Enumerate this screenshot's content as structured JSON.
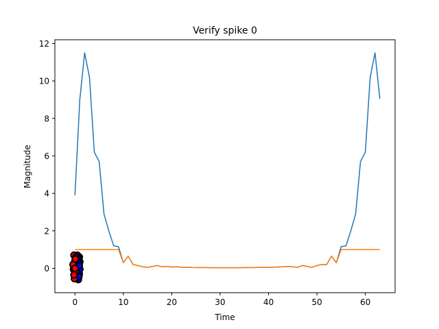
{
  "chart_data": {
    "type": "line",
    "title": "Verify spike 0",
    "xlabel": "Time",
    "ylabel": "Magnitude",
    "xlim": [
      -4.15,
      66.15
    ],
    "ylim": [
      -1.3,
      12.2
    ],
    "xticks": [
      0,
      10,
      20,
      30,
      40,
      50,
      60
    ],
    "yticks": [
      0,
      2,
      4,
      6,
      8,
      10,
      12
    ],
    "series": [
      {
        "color": "#1f77b4",
        "x": [
          0,
          1,
          2,
          3,
          4,
          5,
          6,
          7,
          8,
          9,
          10,
          11,
          12,
          13,
          14,
          15,
          16,
          17,
          18,
          19,
          20,
          21,
          22,
          23,
          24,
          25,
          26,
          27,
          28,
          29,
          30,
          31,
          32,
          33,
          34,
          35,
          36,
          37,
          38,
          39,
          40,
          41,
          42,
          43,
          44,
          45,
          46,
          47,
          48,
          49,
          50,
          51,
          52,
          53,
          54,
          55,
          56,
          57,
          58,
          59,
          60,
          61,
          62,
          63
        ],
        "y": [
          3.9,
          9.0,
          11.5,
          10.2,
          6.2,
          5.7,
          2.9,
          2.0,
          1.2,
          1.15,
          0.3,
          0.65,
          0.2,
          0.15,
          0.08,
          0.05,
          0.1,
          0.15,
          0.08,
          0.1,
          0.07,
          0.08,
          0.06,
          0.05,
          0.05,
          0.04,
          0.04,
          0.04,
          0.03,
          0.03,
          0.03,
          0.03,
          0.03,
          0.03,
          0.03,
          0.04,
          0.04,
          0.04,
          0.05,
          0.05,
          0.05,
          0.06,
          0.07,
          0.08,
          0.1,
          0.08,
          0.05,
          0.15,
          0.1,
          0.05,
          0.15,
          0.2,
          0.2,
          0.65,
          0.3,
          1.15,
          1.2,
          2.0,
          2.9,
          5.7,
          6.2,
          10.2,
          11.5,
          9.05
        ]
      },
      {
        "color": "#ff7f0e",
        "x": [
          0,
          1,
          2,
          3,
          4,
          5,
          6,
          7,
          8,
          9,
          10,
          11,
          12,
          13,
          14,
          15,
          16,
          17,
          18,
          19,
          20,
          21,
          22,
          23,
          24,
          25,
          26,
          27,
          28,
          29,
          30,
          31,
          32,
          33,
          34,
          35,
          36,
          37,
          38,
          39,
          40,
          41,
          42,
          43,
          44,
          45,
          46,
          47,
          48,
          49,
          50,
          51,
          52,
          53,
          54,
          55,
          56,
          57,
          58,
          59,
          60,
          61,
          62,
          63
        ],
        "y": [
          1,
          1,
          1,
          1,
          1,
          1,
          1,
          1,
          1,
          1,
          0.3,
          0.65,
          0.2,
          0.15,
          0.08,
          0.05,
          0.1,
          0.15,
          0.08,
          0.1,
          0.07,
          0.08,
          0.06,
          0.05,
          0.05,
          0.04,
          0.04,
          0.04,
          0.03,
          0.03,
          0.03,
          0.03,
          0.03,
          0.03,
          0.03,
          0.04,
          0.04,
          0.04,
          0.05,
          0.05,
          0.05,
          0.06,
          0.07,
          0.08,
          0.1,
          0.08,
          0.05,
          0.15,
          0.1,
          0.05,
          0.15,
          0.2,
          0.2,
          0.65,
          0.3,
          1,
          1,
          1,
          1,
          1,
          1,
          1,
          1,
          1
        ]
      }
    ],
    "scatter_series": [
      {
        "color": "#0000ff",
        "edge": "#000000",
        "points": [
          [
            0.4,
            0.5
          ],
          [
            0.6,
            0.2
          ],
          [
            0.8,
            -0.1
          ],
          [
            0.5,
            -0.4
          ],
          [
            0.7,
            -0.6
          ],
          [
            0.9,
            0.6
          ],
          [
            0.3,
            0.1
          ],
          [
            1.0,
            0.35
          ],
          [
            0.6,
            -0.25
          ],
          [
            0.8,
            0.05
          ],
          [
            0.4,
            -0.5
          ],
          [
            0.9,
            -0.3
          ],
          [
            0.5,
            0.7
          ],
          [
            0.7,
            0.45
          ],
          [
            1.0,
            -0.05
          ],
          [
            0.3,
            -0.15
          ],
          [
            0.6,
            0.55
          ],
          [
            0.8,
            -0.45
          ],
          [
            0.5,
            0.3
          ],
          [
            0.9,
            0.15
          ]
        ]
      },
      {
        "color": "#ff0000",
        "edge": "#000000",
        "points": [
          [
            -0.2,
            0.7
          ],
          [
            0.0,
            0.4
          ],
          [
            -0.3,
            -0.05
          ],
          [
            0.1,
            -0.2
          ],
          [
            -0.1,
            -0.55
          ],
          [
            0.2,
            0.6
          ],
          [
            -0.4,
            0.2
          ],
          [
            0.0,
            0.0
          ],
          [
            -0.2,
            -0.35
          ],
          [
            0.1,
            0.5
          ]
        ]
      }
    ],
    "grid": false,
    "legend": "none"
  }
}
